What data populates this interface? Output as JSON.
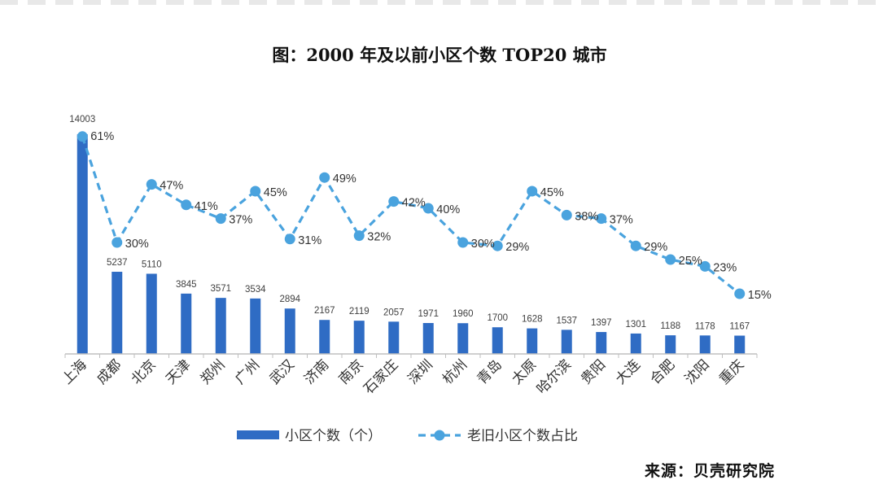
{
  "title": "图：2000 年及以前小区个数 TOP20 城市",
  "source": "来源：贝壳研究院",
  "colors": {
    "bar": "#2f6cc4",
    "line": "#4aa3de",
    "axis": "#bfbfbf",
    "text": "#404040"
  },
  "chart_data": {
    "type": "bar",
    "categories": [
      "上海",
      "成都",
      "北京",
      "天津",
      "郑州",
      "广州",
      "武汉",
      "济南",
      "南京",
      "石家庄",
      "深圳",
      "杭州",
      "青岛",
      "太原",
      "哈尔滨",
      "贵阳",
      "大连",
      "合肥",
      "沈阳",
      "重庆"
    ],
    "series": [
      {
        "name": "小区个数（个）",
        "type": "bar",
        "values": [
          14003,
          5237,
          5110,
          3845,
          3571,
          3534,
          2894,
          2167,
          2119,
          2057,
          1971,
          1960,
          1700,
          1628,
          1537,
          1397,
          1301,
          1188,
          1178,
          1167
        ],
        "labels": [
          "14003",
          "5237",
          "5110",
          "3845",
          "3571",
          "3534",
          "2894",
          "2167",
          "2119",
          "2057",
          "1971",
          "1960",
          "1700",
          "1628",
          "1537",
          "1397",
          "1301",
          "1188",
          "1178",
          "1167"
        ]
      },
      {
        "name": "老旧小区个数占比",
        "type": "line",
        "style": "dashed-with-markers",
        "values": [
          61,
          30,
          47,
          41,
          37,
          45,
          31,
          49,
          32,
          42,
          40,
          30,
          29,
          45,
          38,
          37,
          29,
          25,
          23,
          15
        ],
        "labels": [
          "61%",
          "30%",
          "47%",
          "41%",
          "37%",
          "45%",
          "31%",
          "49%",
          "32%",
          "42%",
          "40%",
          "30%",
          "29%",
          "45%",
          "38%",
          "37%",
          "29%",
          "25%",
          "23%",
          "15%"
        ]
      }
    ],
    "ylim_bar": [
      0,
      14003
    ],
    "ylim_line": [
      0,
      61
    ],
    "legend_position": "bottom",
    "grid": false
  }
}
